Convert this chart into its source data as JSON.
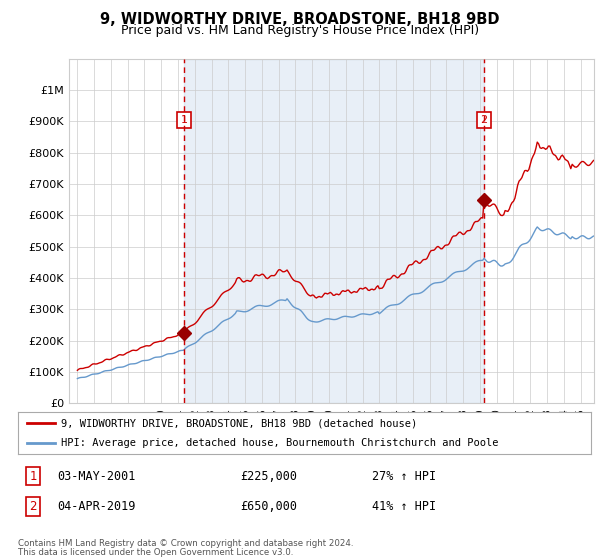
{
  "title": "9, WIDWORTHY DRIVE, BROADSTONE, BH18 9BD",
  "subtitle": "Price paid vs. HM Land Registry's House Price Index (HPI)",
  "red_label": "9, WIDWORTHY DRIVE, BROADSTONE, BH18 9BD (detached house)",
  "blue_label": "HPI: Average price, detached house, Bournemouth Christchurch and Poole",
  "annotation1_date": "03-MAY-2001",
  "annotation1_price": "£225,000",
  "annotation1_hpi": "27% ↑ HPI",
  "annotation2_date": "04-APR-2019",
  "annotation2_price": "£650,000",
  "annotation2_hpi": "41% ↑ HPI",
  "footer1": "Contains HM Land Registry data © Crown copyright and database right 2024.",
  "footer2": "This data is licensed under the Open Government Licence v3.0.",
  "red_color": "#cc0000",
  "blue_color": "#6699cc",
  "fill_color": "#ddeeff",
  "marker_color": "#990000",
  "vline_color": "#cc0000",
  "grid_color": "#cccccc",
  "background_color": "#ffffff",
  "ylim_max": 1100000,
  "yticks": [
    0,
    100000,
    200000,
    300000,
    400000,
    500000,
    600000,
    700000,
    800000,
    900000,
    1000000
  ],
  "sale1_x": 2001.37,
  "sale1_y": 225000,
  "sale2_x": 2019.25,
  "sale2_y": 650000,
  "xlim_min": 1994.5,
  "xlim_max": 2025.8
}
